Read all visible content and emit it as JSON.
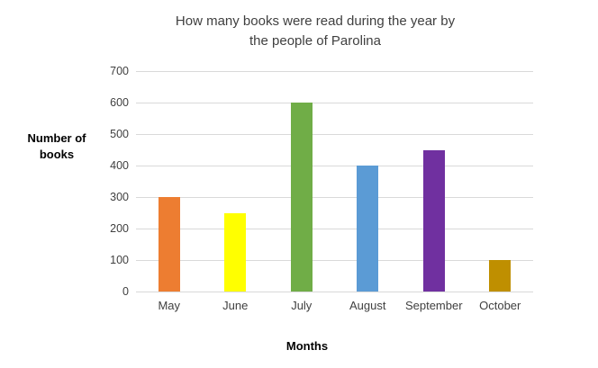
{
  "title_lines": [
    "How many books were read during the year by",
    "the people of Parolina"
  ],
  "ylabel_lines": [
    "Number of",
    "books"
  ],
  "chart_data": {
    "type": "bar",
    "title": "How many books were read during the year by the people of Parolina",
    "xlabel": "Months",
    "ylabel": "Number of books",
    "categories": [
      "May",
      "June",
      "July",
      "August",
      "September",
      "October"
    ],
    "values": [
      300,
      250,
      600,
      400,
      450,
      100
    ],
    "bar_colors": [
      "#ED7D31",
      "#FFFF00",
      "#70AD47",
      "#5B9BD5",
      "#7030A0",
      "#BF8F00"
    ],
    "ylim": [
      0,
      700
    ],
    "yticks": [
      0,
      100,
      200,
      300,
      400,
      500,
      600,
      700
    ],
    "grid": true,
    "gridline_color": "#D9D9D9",
    "text_color": "#404040",
    "legend": "none",
    "background": "#FFFFFF"
  }
}
